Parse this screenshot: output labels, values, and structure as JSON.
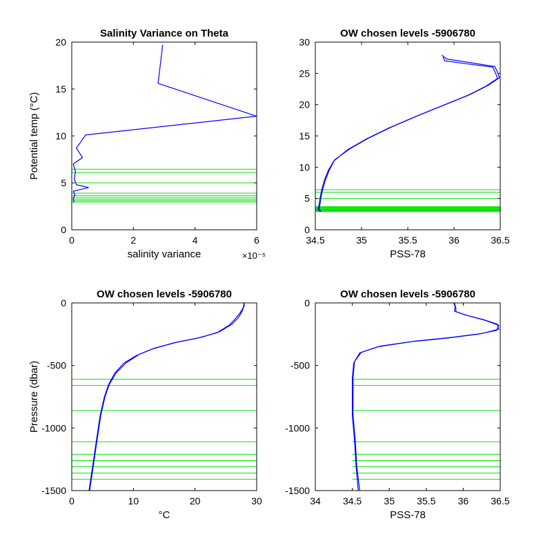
{
  "colors": {
    "profile": "#0000ff",
    "levels": "#00e600",
    "axes": "#000000",
    "background": "#ffffff"
  },
  "chart_data": [
    {
      "id": "salvar",
      "type": "line",
      "title": "Salinity Variance on Theta",
      "xlabel": "salinity variance",
      "ylabel": "Potential temp (°C)",
      "xlim": [
        0,
        6
      ],
      "ylim": [
        0,
        20
      ],
      "xticks": [
        0,
        2,
        4,
        6
      ],
      "yticks": [
        0,
        5,
        10,
        15,
        20
      ],
      "x_multiplier": "×10⁻⁵",
      "series": [
        {
          "color": "#0000ff",
          "points": [
            [
              0.08,
              2.9
            ],
            [
              0.05,
              3.3
            ],
            [
              0.1,
              3.7
            ],
            [
              0.05,
              4.1
            ],
            [
              0.55,
              4.5
            ],
            [
              0.15,
              4.8
            ],
            [
              0.08,
              5.4
            ],
            [
              0.12,
              6.2
            ],
            [
              0.05,
              7.0
            ],
            [
              0.35,
              7.7
            ],
            [
              0.15,
              8.7
            ],
            [
              0.45,
              10.1
            ],
            [
              6.0,
              12.1
            ],
            [
              2.8,
              15.6
            ],
            [
              2.95,
              19.7
            ]
          ]
        }
      ],
      "level_lines": [
        2.95,
        3.1,
        3.25,
        3.45,
        3.65,
        3.9,
        5.0,
        6.1,
        6.45
      ],
      "level_line_xrange": [
        0,
        6
      ]
    },
    {
      "id": "theta_s",
      "type": "line",
      "title": "OW chosen levels -5906780",
      "xlabel": "PSS-78",
      "ylabel": "",
      "xlim": [
        34.5,
        36.5
      ],
      "ylim": [
        0,
        30
      ],
      "xticks": [
        34.5,
        35,
        35.5,
        36,
        36.5
      ],
      "yticks": [
        0,
        5,
        10,
        15,
        20,
        25,
        30
      ],
      "series": [
        {
          "color": "#0000ff",
          "points": [
            [
              34.55,
              2.9
            ],
            [
              34.53,
              3.3
            ],
            [
              34.54,
              4.0
            ],
            [
              34.55,
              5.0
            ],
            [
              34.57,
              6.5
            ],
            [
              34.6,
              8.0
            ],
            [
              34.64,
              9.5
            ],
            [
              34.7,
              11.0
            ],
            [
              34.85,
              12.8
            ],
            [
              35.05,
              14.5
            ],
            [
              35.3,
              16.3
            ],
            [
              35.6,
              18.2
            ],
            [
              35.9,
              20.0
            ],
            [
              36.15,
              21.5
            ],
            [
              36.35,
              23.0
            ],
            [
              36.47,
              24.2
            ],
            [
              36.45,
              25.0
            ],
            [
              36.42,
              26.0
            ],
            [
              36.15,
              26.5
            ],
            [
              35.9,
              27.0
            ],
            [
              35.88,
              27.6
            ]
          ]
        },
        {
          "color": "#0000ff",
          "points": [
            [
              34.56,
              2.9
            ],
            [
              34.54,
              3.3
            ],
            [
              34.55,
              4.0
            ],
            [
              34.56,
              5.0
            ],
            [
              34.58,
              6.5
            ],
            [
              34.61,
              8.0
            ],
            [
              34.65,
              9.5
            ],
            [
              34.71,
              11.2
            ],
            [
              34.87,
              12.9
            ],
            [
              35.07,
              14.6
            ],
            [
              35.32,
              16.4
            ],
            [
              35.62,
              18.3
            ],
            [
              35.92,
              20.1
            ],
            [
              36.17,
              21.6
            ],
            [
              36.37,
              23.1
            ],
            [
              36.49,
              24.3
            ],
            [
              36.47,
              25.2
            ],
            [
              36.44,
              26.1
            ],
            [
              36.18,
              26.7
            ],
            [
              35.92,
              27.3
            ],
            [
              35.87,
              27.9
            ]
          ]
        }
      ],
      "level_lines": [
        2.9,
        3.0,
        3.1,
        3.2,
        3.3,
        3.4,
        3.5,
        3.6,
        3.7,
        5.0,
        6.0,
        6.4
      ],
      "level_line_xrange": [
        34.5,
        36.5
      ]
    },
    {
      "id": "t_p",
      "type": "line",
      "title": "OW chosen levels -5906780",
      "xlabel": "°C",
      "ylabel": "Pressure (dbar)",
      "xlim": [
        0,
        30
      ],
      "ylim": [
        -1500,
        0
      ],
      "xticks": [
        0,
        10,
        20,
        30
      ],
      "yticks": [
        -1500,
        -1000,
        -500,
        0
      ],
      "series": [
        {
          "color": "#0000ff",
          "points": [
            [
              2.8,
              -1500
            ],
            [
              3.4,
              -1300
            ],
            [
              4.0,
              -1100
            ],
            [
              4.6,
              -900
            ],
            [
              5.3,
              -750
            ],
            [
              6.0,
              -650
            ],
            [
              7.0,
              -560
            ],
            [
              8.5,
              -480
            ],
            [
              10.5,
              -420
            ],
            [
              13.0,
              -370
            ],
            [
              16.5,
              -320
            ],
            [
              20.5,
              -280
            ],
            [
              23.5,
              -240
            ],
            [
              25.5,
              -180
            ],
            [
              26.5,
              -130
            ],
            [
              27.3,
              -80
            ],
            [
              27.8,
              -40
            ],
            [
              28.0,
              0
            ]
          ]
        },
        {
          "color": "#0000ff",
          "points": [
            [
              2.9,
              -1500
            ],
            [
              3.5,
              -1300
            ],
            [
              4.1,
              -1100
            ],
            [
              4.7,
              -900
            ],
            [
              5.4,
              -750
            ],
            [
              6.1,
              -650
            ],
            [
              7.2,
              -560
            ],
            [
              8.8,
              -480
            ],
            [
              11.0,
              -410
            ],
            [
              13.5,
              -360
            ],
            [
              17.0,
              -315
            ],
            [
              21.0,
              -275
            ],
            [
              24.0,
              -230
            ],
            [
              26.0,
              -170
            ],
            [
              27.0,
              -120
            ],
            [
              27.6,
              -70
            ],
            [
              28.0,
              -20
            ],
            [
              27.9,
              0
            ]
          ]
        }
      ],
      "level_lines": [
        -1500,
        -1410,
        -1360,
        -1310,
        -1260,
        -1210,
        -1110,
        -860,
        -660,
        -610
      ],
      "level_line_xrange": [
        0,
        30
      ]
    },
    {
      "id": "s_p",
      "type": "line",
      "title": "OW chosen levels -5906780",
      "xlabel": "PSS-78",
      "ylabel": "",
      "xlim": [
        34,
        36.5
      ],
      "ylim": [
        -1500,
        0
      ],
      "xticks": [
        34,
        34.5,
        35,
        35.5,
        36,
        36.5
      ],
      "yticks": [
        -1500,
        -1000,
        -500,
        0
      ],
      "series": [
        {
          "color": "#0000ff",
          "points": [
            [
              34.58,
              -1500
            ],
            [
              34.55,
              -1300
            ],
            [
              34.53,
              -1100
            ],
            [
              34.5,
              -900
            ],
            [
              34.5,
              -700
            ],
            [
              34.5,
              -600
            ],
            [
              34.52,
              -480
            ],
            [
              34.6,
              -400
            ],
            [
              34.85,
              -350
            ],
            [
              35.3,
              -310
            ],
            [
              35.8,
              -280
            ],
            [
              36.2,
              -250
            ],
            [
              36.45,
              -220
            ],
            [
              36.48,
              -180
            ],
            [
              36.3,
              -140
            ],
            [
              36.05,
              -100
            ],
            [
              35.9,
              -70
            ],
            [
              35.9,
              -40
            ],
            [
              35.88,
              0
            ]
          ]
        },
        {
          "color": "#0000ff",
          "points": [
            [
              34.6,
              -1500
            ],
            [
              34.56,
              -1300
            ],
            [
              34.54,
              -1100
            ],
            [
              34.51,
              -900
            ],
            [
              34.51,
              -700
            ],
            [
              34.51,
              -600
            ],
            [
              34.53,
              -470
            ],
            [
              34.62,
              -395
            ],
            [
              34.88,
              -345
            ],
            [
              35.35,
              -305
            ],
            [
              35.85,
              -275
            ],
            [
              36.25,
              -245
            ],
            [
              36.48,
              -210
            ],
            [
              36.46,
              -170
            ],
            [
              36.28,
              -135
            ],
            [
              36.02,
              -95
            ],
            [
              35.88,
              -65
            ],
            [
              35.89,
              -30
            ],
            [
              35.87,
              0
            ]
          ]
        }
      ],
      "level_lines": [
        -1500,
        -1410,
        -1360,
        -1310,
        -1260,
        -1210,
        -1110,
        -860,
        -660,
        -610
      ],
      "level_line_xrange": [
        34.5,
        36.5
      ]
    }
  ]
}
